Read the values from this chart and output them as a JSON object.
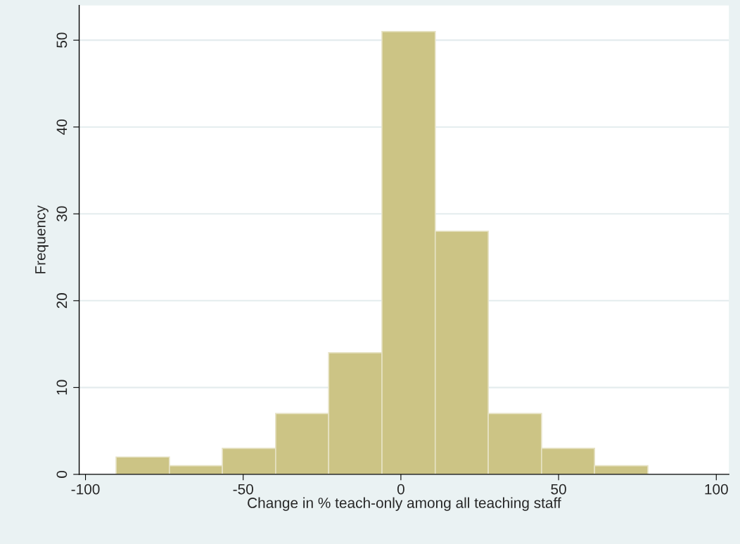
{
  "chart_data": {
    "type": "histogram",
    "xlabel": "Change in % teach-only among all teaching staff",
    "ylabel": "Frequency",
    "bins": [
      -90.3,
      -73.4,
      -56.6,
      -39.7,
      -22.9,
      -6.0,
      10.9,
      27.7,
      44.6,
      61.4,
      78.3
    ],
    "values": [
      2,
      1,
      3,
      7,
      14,
      51,
      28,
      7,
      3,
      1
    ],
    "color": "#ccc485",
    "xlim": [
      -102,
      104
    ],
    "xticks": [
      -100,
      -50,
      0,
      50,
      100
    ],
    "ylim": [
      0,
      54
    ],
    "yticks": [
      0,
      10,
      20,
      30,
      40,
      50
    ],
    "grid": "y",
    "legend": false
  }
}
